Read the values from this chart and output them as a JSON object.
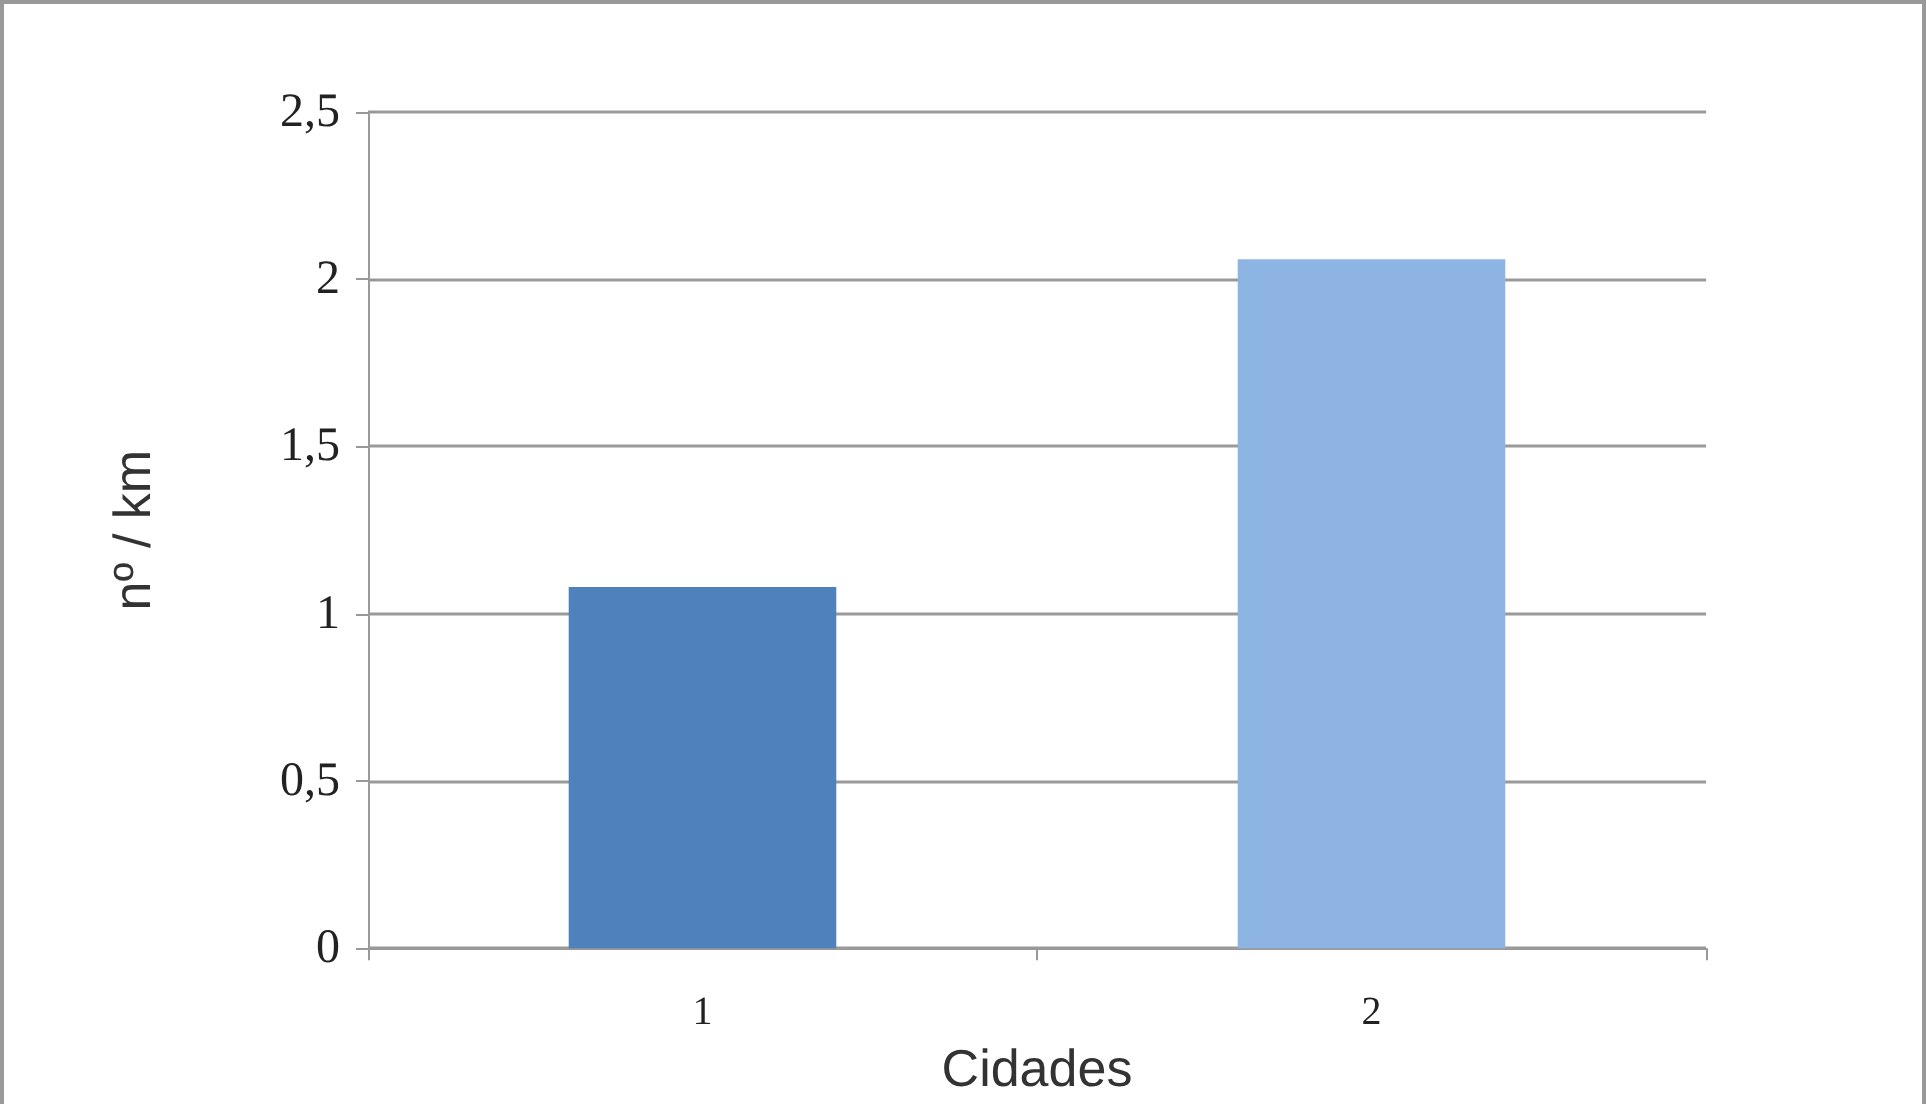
{
  "chart_data": {
    "type": "bar",
    "xlabel": "Cidades",
    "ylabel": "nº / km",
    "categories": [
      "1",
      "2"
    ],
    "values": [
      1.08,
      2.06
    ],
    "colors": [
      "#4f81bd",
      "#8eb4e3"
    ],
    "ylim": [
      0,
      2.5
    ],
    "yticks": [
      0,
      {
        "value": 0.5,
        "label": "0,5"
      },
      1,
      {
        "value": 1.5,
        "label": "1,5"
      },
      2,
      {
        "value": 2.5,
        "label": "2,5"
      }
    ],
    "grid": "y"
  }
}
